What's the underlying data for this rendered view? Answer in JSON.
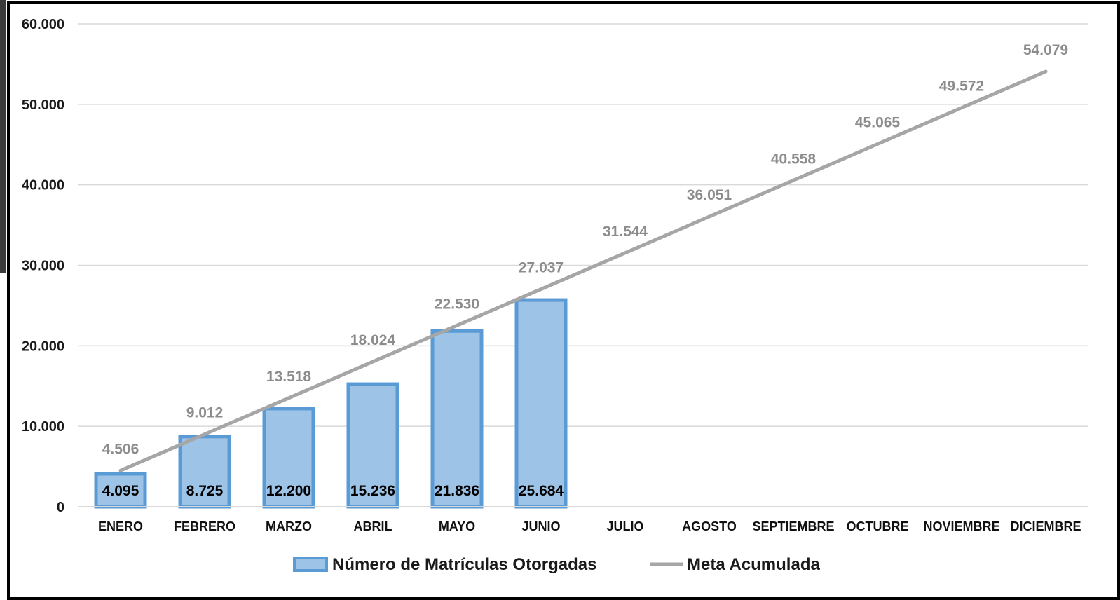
{
  "chart_data": {
    "type": "bar",
    "categories": [
      "ENERO",
      "FEBRERO",
      "MARZO",
      "ABRIL",
      "MAYO",
      "JUNIO",
      "JULIO",
      "AGOSTO",
      "SEPTIEMBRE",
      "OCTUBRE",
      "NOVIEMBRE",
      "DICIEMBRE"
    ],
    "series": [
      {
        "name": "Número de Matrículas Otorgadas",
        "type": "bar",
        "values": [
          4095,
          8725,
          12200,
          15236,
          21836,
          25684,
          null,
          null,
          null,
          null,
          null,
          null
        ],
        "labels": [
          "4.095",
          "8.725",
          "12.200",
          "15.236",
          "21.836",
          "25.684"
        ],
        "color": "#9dc3e6",
        "border_color": "#5b9bd5"
      },
      {
        "name": "Meta Acumulada",
        "type": "line",
        "values": [
          4506,
          9012,
          13518,
          18024,
          22530,
          27037,
          31544,
          36051,
          40558,
          45065,
          49572,
          54079
        ],
        "labels": [
          "4.506",
          "9.012",
          "13.518",
          "18.024",
          "22.530",
          "27.037",
          "31.544",
          "36.051",
          "40.558",
          "45.065",
          "49.572",
          "54.079"
        ],
        "color": "#a6a6a6",
        "label_color": "#8c8c8c"
      }
    ],
    "yticks": [
      0,
      10000,
      20000,
      30000,
      40000,
      50000,
      60000
    ],
    "ytick_labels": [
      "0",
      "10.000",
      "20.000",
      "30.000",
      "40.000",
      "50.000",
      "60.000"
    ],
    "ylim": [
      0,
      60000
    ],
    "grid": true,
    "legend_position": "bottom",
    "title": "",
    "xlabel": "",
    "ylabel": ""
  }
}
